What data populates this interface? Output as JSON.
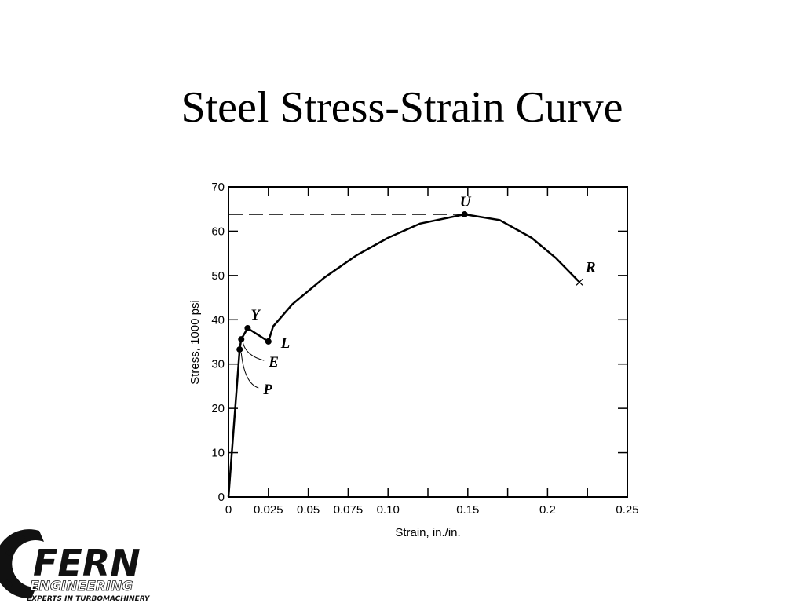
{
  "chart_data": {
    "type": "line",
    "title": "Steel Stress-Strain Curve",
    "x_label": "Strain, in./in.",
    "y_label": "Stress, 1000 psi",
    "x": [
      0,
      0.007,
      0.008,
      0.012,
      0.025,
      0.028,
      0.04,
      0.06,
      0.08,
      0.1,
      0.12,
      0.148,
      0.17,
      0.19,
      0.205,
      0.22
    ],
    "series": [
      {
        "color": "#000000",
        "values": [
          0,
          33.3,
          35.6,
          38.1,
          35.1,
          38.5,
          43.5,
          49.5,
          54.5,
          58.5,
          61.7,
          63.8,
          62.5,
          58.5,
          54,
          48.5
        ]
      }
    ],
    "xlim": [
      0,
      0.25
    ],
    "ylim": [
      0,
      70
    ],
    "xticks": [
      0,
      0.025,
      0.05,
      0.075,
      {
        "value": 0.1,
        "label": "0.10"
      },
      0.15,
      0.2,
      0.25
    ],
    "xminorticks": [
      0.125,
      0.175,
      0.225
    ],
    "yticks": [
      0,
      10,
      20,
      30,
      40,
      50,
      60,
      70
    ],
    "grid": false,
    "annotations": [
      {
        "text": "P",
        "x": 0.007,
        "y": 33.3,
        "marker": "dot"
      },
      {
        "text": "E",
        "x": 0.008,
        "y": 35.6,
        "marker": "dot"
      },
      {
        "text": "Y",
        "x": 0.012,
        "y": 38.1,
        "marker": "dot"
      },
      {
        "text": "L",
        "x": 0.025,
        "y": 35.1,
        "marker": "dot"
      },
      {
        "text": "U",
        "x": 0.148,
        "y": 63.8,
        "marker": "dot"
      },
      {
        "text": "R",
        "x": 0.22,
        "y": 48.5,
        "marker": "x"
      }
    ],
    "hline": {
      "y": 63.8,
      "xmax": 0.148,
      "style": "dashed"
    }
  },
  "logo": {
    "name": "FERN",
    "line2": "ENGINEERING",
    "tagline": "EXPERTS IN TURBOMACHINERY"
  }
}
